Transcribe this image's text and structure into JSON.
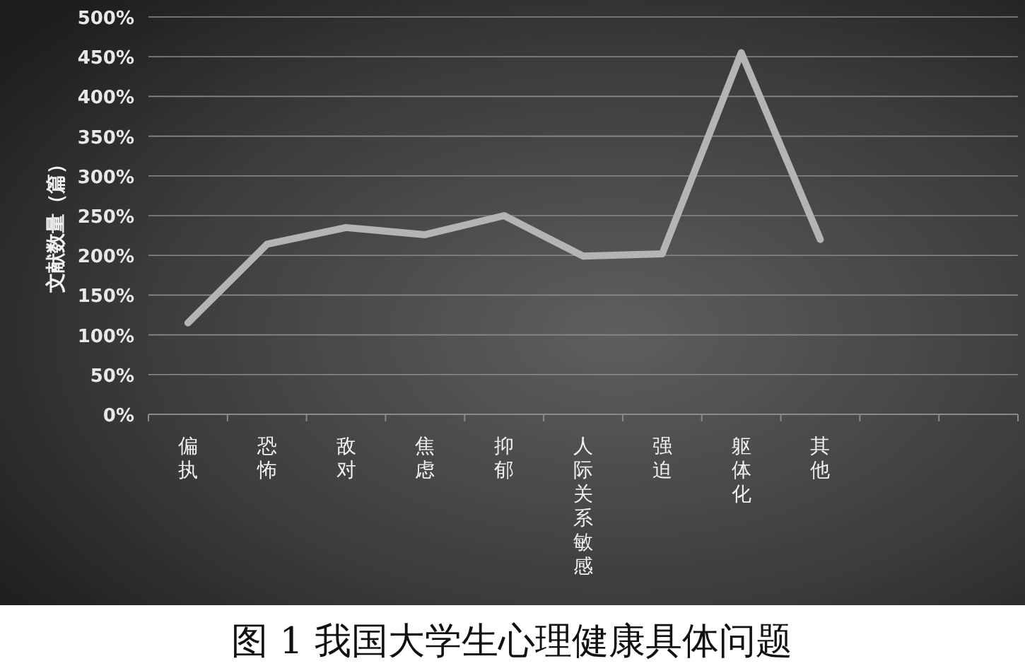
{
  "chart_data": {
    "type": "line",
    "ylabel": "文献数量（篇）",
    "categories": [
      "偏执",
      "恐怖",
      "敌对",
      "焦虑",
      "抑郁",
      "人际关系敏感",
      "强迫",
      "躯体化",
      "其他",
      null,
      null
    ],
    "series": [
      {
        "color": "#b4b4b4",
        "values": [
          115,
          214,
          235,
          226,
          250,
          199,
          202,
          455,
          220,
          null,
          null
        ]
      }
    ],
    "ylim": [
      0,
      500
    ],
    "yticks": [
      {
        "value": 0,
        "label": "0%"
      },
      {
        "value": 50,
        "label": "50%"
      },
      {
        "value": 100,
        "label": "100%"
      },
      {
        "value": 150,
        "label": "150%"
      },
      {
        "value": 200,
        "label": "200%"
      },
      {
        "value": 250,
        "label": "250%"
      },
      {
        "value": 300,
        "label": "300%"
      },
      {
        "value": 350,
        "label": "350%"
      },
      {
        "value": 400,
        "label": "400%"
      },
      {
        "value": 450,
        "label": "450%"
      },
      {
        "value": 500,
        "label": "500%"
      }
    ],
    "grid": "y",
    "marker": "none",
    "line_style": "solid",
    "annotations": [
      "图 1 我国大学生心理健康具体问题"
    ]
  }
}
